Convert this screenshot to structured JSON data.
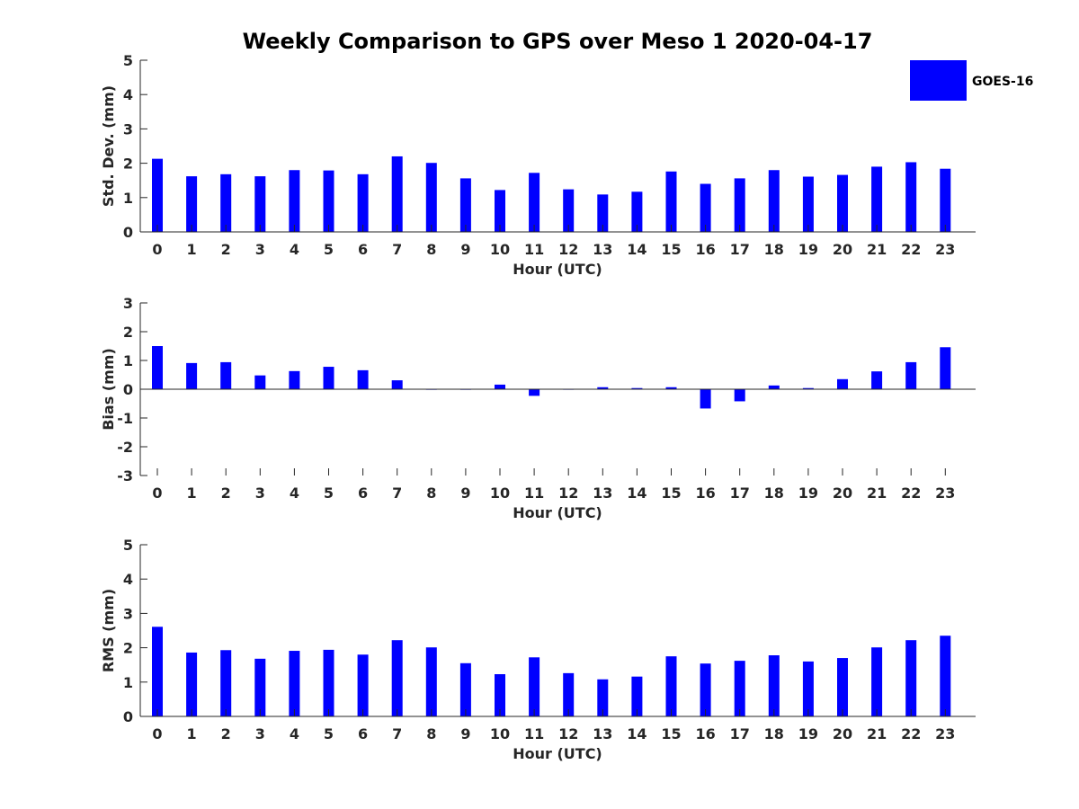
{
  "chart_data": {
    "type": "bar",
    "title": "Weekly Comparison to GPS over Meso 1 2020-04-17",
    "legend": {
      "label": "GOES-16",
      "placement": "top-right"
    },
    "color": "#0000ff",
    "categories": [
      "0",
      "1",
      "2",
      "3",
      "4",
      "5",
      "6",
      "7",
      "8",
      "9",
      "10",
      "11",
      "12",
      "13",
      "14",
      "15",
      "16",
      "17",
      "18",
      "19",
      "20",
      "21",
      "22",
      "23"
    ],
    "panels": [
      {
        "name": "std-dev",
        "ylabel": "Std. Dev. (mm)",
        "xlabel": "Hour (UTC)",
        "ylim": [
          0,
          5
        ],
        "yticks": [
          "0",
          "1",
          "2",
          "3",
          "4",
          "5"
        ],
        "series": [
          {
            "name": "GOES-16",
            "values": [
              2.13,
              1.62,
              1.68,
              1.62,
              1.8,
              1.79,
              1.68,
              2.2,
              2.01,
              1.56,
              1.22,
              1.72,
              1.24,
              1.09,
              1.17,
              1.76,
              1.4,
              1.56,
              1.8,
              1.61,
              1.66,
              1.9,
              2.03,
              1.84
            ]
          }
        ]
      },
      {
        "name": "bias",
        "ylabel": "Bias (mm)",
        "xlabel": "Hour (UTC)",
        "ylim": [
          -3,
          3
        ],
        "yticks": [
          "-3",
          "-2",
          "-1",
          "0",
          "1",
          "2",
          "3"
        ],
        "series": [
          {
            "name": "GOES-16",
            "values": [
              1.5,
              0.91,
              0.94,
              0.48,
              0.63,
              0.78,
              0.66,
              0.31,
              -0.02,
              -0.02,
              0.16,
              -0.23,
              -0.01,
              0.07,
              0.04,
              0.07,
              -0.67,
              -0.42,
              0.13,
              0.04,
              0.35,
              0.62,
              0.94,
              1.46
            ]
          }
        ]
      },
      {
        "name": "rms",
        "ylabel": "RMS (mm)",
        "xlabel": "Hour (UTC)",
        "ylim": [
          0,
          5
        ],
        "yticks": [
          "0",
          "1",
          "2",
          "3",
          "4",
          "5"
        ],
        "series": [
          {
            "name": "GOES-16",
            "values": [
              2.61,
              1.86,
              1.93,
              1.68,
              1.91,
              1.94,
              1.8,
              2.22,
              2.01,
              1.55,
              1.23,
              1.72,
              1.26,
              1.08,
              1.16,
              1.75,
              1.54,
              1.62,
              1.78,
              1.6,
              1.7,
              2.01,
              2.22,
              2.35
            ]
          }
        ]
      }
    ]
  }
}
